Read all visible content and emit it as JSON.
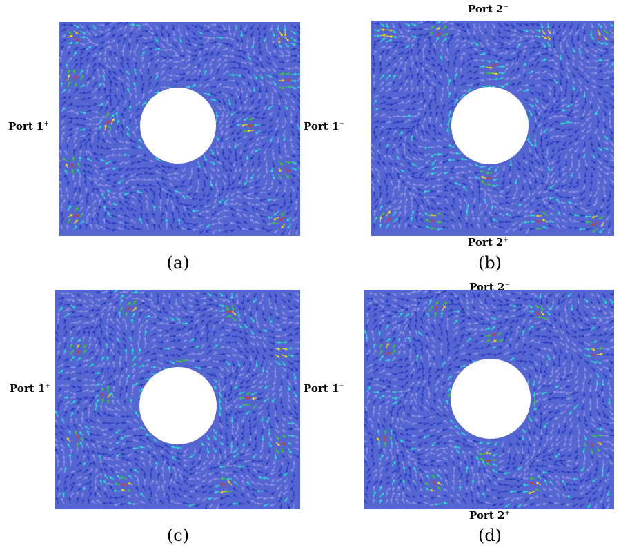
{
  "panels": [
    {
      "id": "a",
      "caption": "(a)",
      "hole": "center",
      "ports": [
        {
          "name": "Port 1",
          "sign": "+"
        },
        {
          "name": "Port 1",
          "sign": "−"
        }
      ]
    },
    {
      "id": "b",
      "caption": "(b)",
      "hole": "center",
      "ports": [
        {
          "name": "Port 2",
          "sign": "−"
        },
        {
          "name": "Port 2",
          "sign": "+"
        }
      ]
    },
    {
      "id": "c",
      "caption": "(c)",
      "hole": "center",
      "ports": [
        {
          "name": "Port 1",
          "sign": "+"
        },
        {
          "name": "Port 1",
          "sign": "−"
        }
      ]
    },
    {
      "id": "d",
      "caption": "(d)",
      "hole": "center",
      "ports": [
        {
          "name": "Port 2",
          "sign": "−"
        },
        {
          "name": "Port 2",
          "sign": "+"
        }
      ]
    }
  ],
  "colors": {
    "field_primary": "#2a3fc0",
    "field_light": "#8a8fe0",
    "field_cyan": "#2fd6d0",
    "field_green": "#3cc43c",
    "field_yellow": "#e8d020",
    "field_red": "#d23a2a",
    "background": "#ffffff"
  }
}
